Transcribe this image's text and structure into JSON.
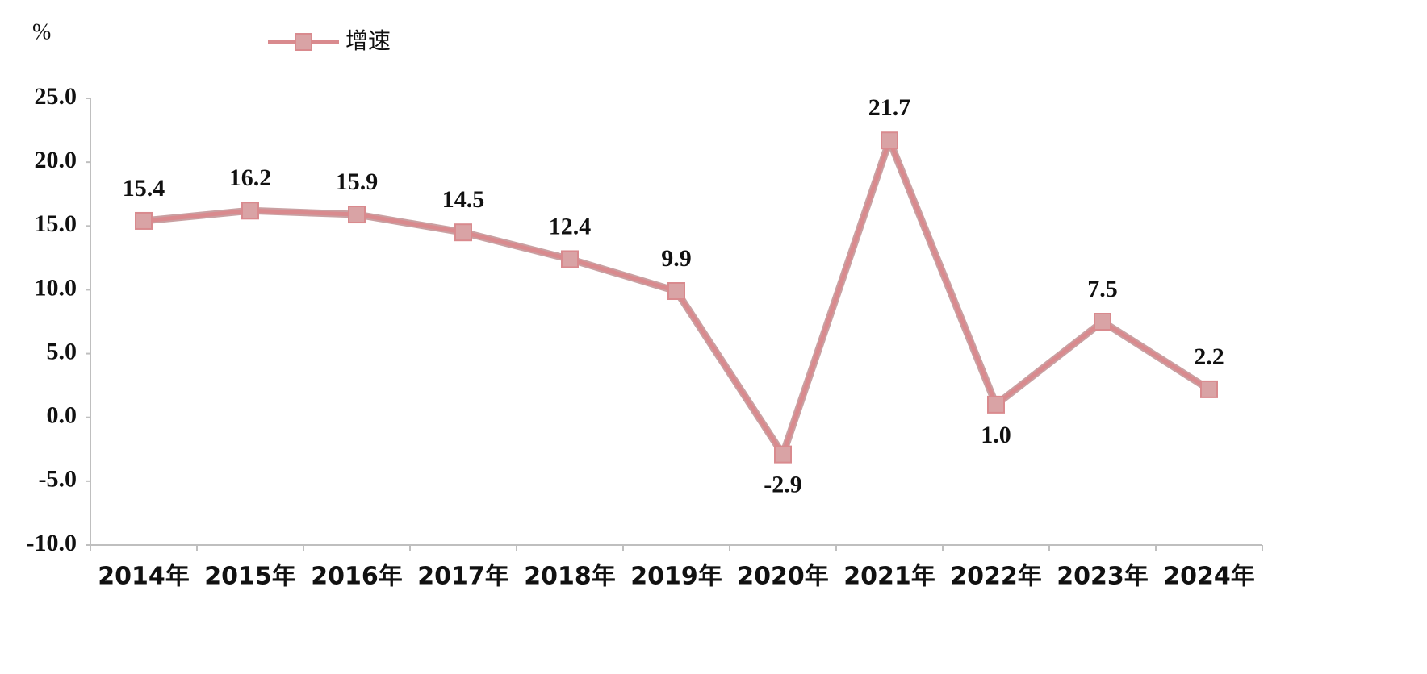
{
  "chart_data": {
    "type": "line",
    "y_label": "%",
    "categories": [
      "2014年",
      "2015年",
      "2016年",
      "2017年",
      "2018年",
      "2019年",
      "2020年",
      "2021年",
      "2022年",
      "2023年",
      "2024年"
    ],
    "series": [
      {
        "name": "增速",
        "color": "#d98a8e",
        "marker_color": "#d9a3a5",
        "values": [
          15.4,
          16.2,
          15.9,
          14.5,
          12.4,
          9.9,
          -2.9,
          21.7,
          1.0,
          7.5,
          2.2
        ],
        "value_labels": [
          "15.4",
          "16.2",
          "15.9",
          "14.5",
          "12.4",
          "9.9",
          "-2.9",
          "21.7",
          "1.0",
          "7.5",
          "2.2"
        ]
      }
    ],
    "ylim": [
      -10,
      25
    ],
    "yticks": [
      {
        "value": -10,
        "label": "-10.0"
      },
      {
        "value": -5,
        "label": "-5.0"
      },
      {
        "value": 0,
        "label": "0.0"
      },
      {
        "value": 5,
        "label": "5.0"
      },
      {
        "value": 10,
        "label": "10.0"
      },
      {
        "value": 15,
        "label": "15.0"
      },
      {
        "value": 20,
        "label": "20.0"
      },
      {
        "value": 25,
        "label": "25.0"
      }
    ],
    "grid": false,
    "legend": "top-left"
  }
}
